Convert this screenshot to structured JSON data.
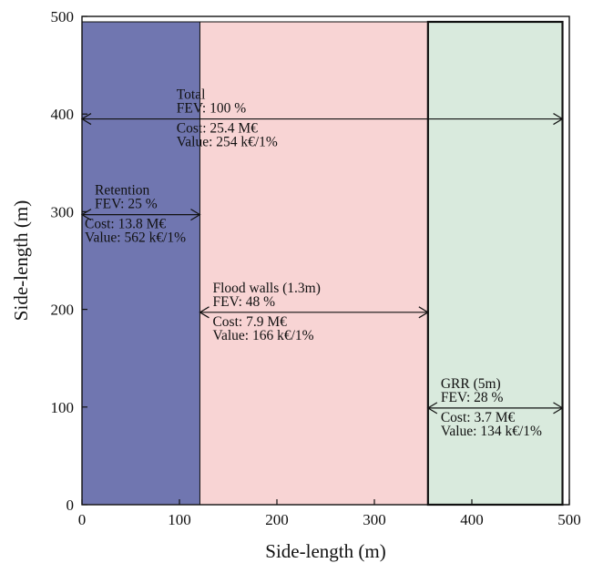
{
  "chart_data": {
    "type": "area",
    "xlabel": "Side-length (m)",
    "ylabel": "Side-length (m)",
    "xlim": [
      0,
      500
    ],
    "ylim": [
      0,
      500
    ],
    "xticks": [
      "0",
      "100",
      "200",
      "300",
      "400",
      "500"
    ],
    "yticks": [
      "0",
      "100",
      "200",
      "300",
      "400",
      "500"
    ],
    "grid": false,
    "regions": [
      {
        "name": "Retention",
        "x_start": 0,
        "x_end": 121,
        "color": "#7076b0"
      },
      {
        "name": "Flood walls (1.3m)",
        "x_start": 121,
        "x_end": 355,
        "color": "#f8d4d4"
      },
      {
        "name": "GRR (5m)",
        "x_start": 355,
        "x_end": 493,
        "color": "#d9eadd"
      }
    ],
    "annotations": [
      {
        "name": "Total",
        "x_start": 0,
        "x_end": 493,
        "y": 395,
        "lines": [
          "Total",
          "FEV: 100 %",
          "Cost: 25.4 M€",
          "Value: 254 k€/1%"
        ]
      },
      {
        "name": "Retention",
        "x_start": 0,
        "x_end": 121,
        "y": 297,
        "lines": [
          "Retention",
          "FEV: 25 %",
          "Cost: 13.8 M€",
          "Value: 562 k€/1%"
        ]
      },
      {
        "name": "Flood walls (1.3m)",
        "x_start": 121,
        "x_end": 355,
        "y": 197,
        "lines": [
          "Flood walls (1.3m)",
          "FEV: 48 %",
          "Cost: 7.9 M€",
          "Value: 166 k€/1%"
        ]
      },
      {
        "name": "GRR (5m)",
        "x_start": 355,
        "x_end": 493,
        "y": 99,
        "lines": [
          "GRR (5m)",
          "FEV: 28 %",
          "Cost: 3.7 M€",
          "Value: 134 k€/1%"
        ]
      }
    ]
  }
}
